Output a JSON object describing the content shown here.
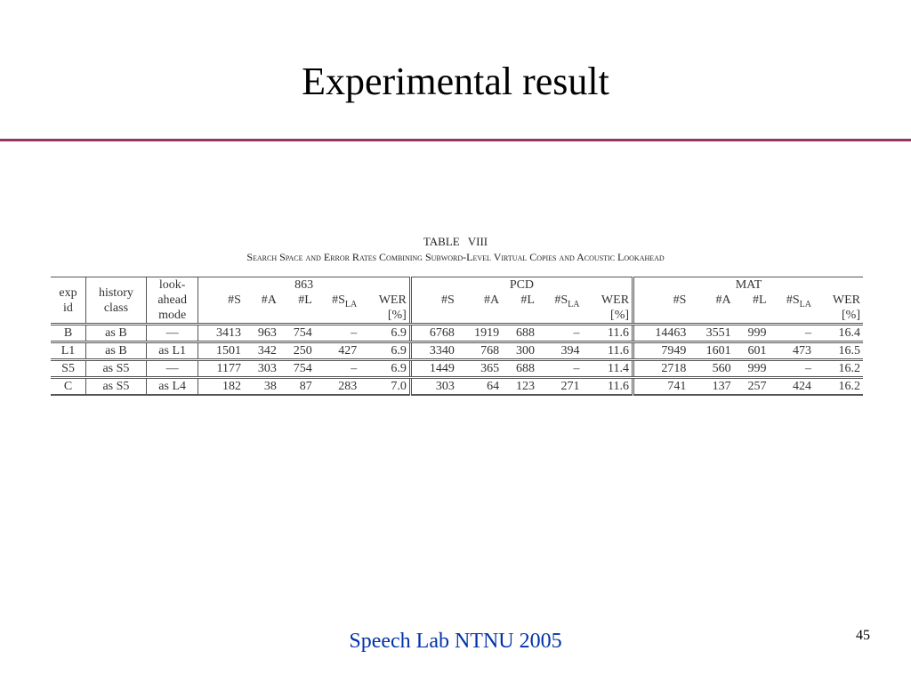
{
  "header": {
    "title": "Experimental result"
  },
  "table": {
    "caption": "TABLE VIII",
    "subtitle": "Search Space and Error Rates Combining Subword-Level Virtual Copies and Acoustic Lookahead",
    "row_headers": [
      [
        "exp",
        "id"
      ],
      [
        "history",
        "class"
      ],
      [
        "look-",
        "ahead",
        "mode"
      ]
    ],
    "groups": [
      "863",
      "PCD",
      "MAT"
    ],
    "columns": [
      {
        "text": "#S"
      },
      {
        "text": "#A"
      },
      {
        "text": "#L"
      },
      {
        "text": "#S",
        "sub": "LA"
      },
      {
        "text": "WER",
        "unit": "[%]"
      }
    ],
    "rows": [
      [
        "B",
        "as B",
        "—",
        "3413",
        "963",
        "754",
        "–",
        "6.9",
        "6768",
        "1919",
        "688",
        "–",
        "11.6",
        "14463",
        "3551",
        "999",
        "–",
        "16.4"
      ],
      [
        "L1",
        "as B",
        "as L1",
        "1501",
        "342",
        "250",
        "427",
        "6.9",
        "3340",
        "768",
        "300",
        "394",
        "11.6",
        "7949",
        "1601",
        "601",
        "473",
        "16.5"
      ],
      [
        "S5",
        "as S5",
        "—",
        "1177",
        "303",
        "754",
        "–",
        "6.9",
        "1449",
        "365",
        "688",
        "–",
        "11.4",
        "2718",
        "560",
        "999",
        "–",
        "16.2"
      ],
      [
        "C",
        "as S5",
        "as L4",
        "182",
        "38",
        "87",
        "283",
        "7.0",
        "303",
        "64",
        "123",
        "271",
        "11.6",
        "741",
        "137",
        "257",
        "424",
        "16.2"
      ]
    ]
  },
  "footer": {
    "text": "Speech Lab NTNU 2005",
    "page": "45"
  }
}
